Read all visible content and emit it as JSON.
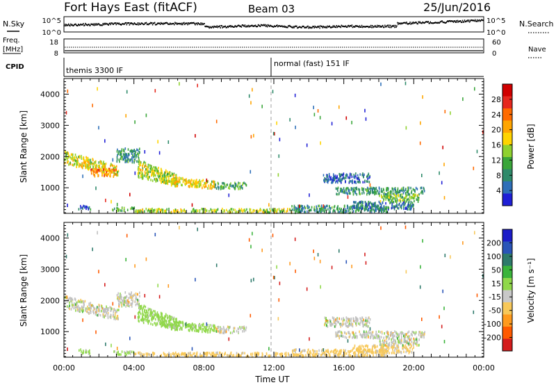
{
  "header": {
    "station": "Fort Hays East (fitACF)",
    "beam": "Beam 03",
    "date": "25/Jun/2016"
  },
  "noise_panel": {
    "left_label": "N.Sky",
    "right_label": "N.Search",
    "left_ticks": [
      "10^5",
      "10^0"
    ],
    "right_ticks": [
      "10^5",
      "10^0"
    ]
  },
  "freq_panel": {
    "left_label_1": "Freq.",
    "left_label_2": "[MHz]",
    "right_label": "Nave",
    "left_ticks": [
      "18",
      "8"
    ],
    "right_ticks": [
      "60",
      "0"
    ]
  },
  "cpid": {
    "label": "CPID",
    "segments": [
      {
        "start_hour": 0,
        "text": "themis 3300 IF"
      },
      {
        "start_hour": 12,
        "text": "normal (fast) 151 IF"
      }
    ]
  },
  "colors": {
    "power": [
      "#1f1fd6",
      "#2e6fb8",
      "#2e8a6a",
      "#3aa63a",
      "#8fd12f",
      "#ffd400",
      "#ffa500",
      "#ff6a00",
      "#e6281e",
      "#d00000"
    ],
    "velocity": [
      "#d41c1c",
      "#ff5a00",
      "#ff9a1e",
      "#f7c85a",
      "#c8c8c8",
      "#90d84a",
      "#3bb43b",
      "#2e7a6b",
      "#2a55b8",
      "#1c1cc8"
    ],
    "velocity_gray": "#c0c0c0"
  },
  "chart_data": [
    {
      "type": "heatmap",
      "name": "power",
      "ylabel": "Slant Range [km]",
      "yticks": [
        "1000",
        "2000",
        "3000",
        "4000"
      ],
      "ylim": [
        180,
        4500
      ],
      "xlim": [
        0,
        24
      ],
      "colorbar_label": "Power [dB]",
      "colorbar_ticks": [
        "4",
        "8",
        "12",
        "16",
        "20",
        "24",
        "28"
      ],
      "colorbar_range": [
        0,
        30
      ],
      "regions": [
        {
          "t0": 0.0,
          "t1": 3.1,
          "r0": 1750,
          "r1": 2150,
          "r_end0": 1350,
          "r_end1": 1700,
          "level": 16
        },
        {
          "t0": 1.5,
          "t1": 3.0,
          "r0": 1350,
          "r1": 1600,
          "level": 21
        },
        {
          "t0": 3.0,
          "t1": 4.3,
          "r0": 1800,
          "r1": 2250,
          "level": 8
        },
        {
          "t0": 4.2,
          "t1": 6.5,
          "r0": 1300,
          "r1": 1900,
          "r_end0": 1050,
          "r_end1": 1400,
          "level": 14
        },
        {
          "t0": 6.0,
          "t1": 8.6,
          "r0": 1050,
          "r1": 1350,
          "r_end0": 950,
          "r_end1": 1200,
          "level": 16
        },
        {
          "t0": 8.6,
          "t1": 10.4,
          "r0": 950,
          "r1": 1150,
          "level": 10
        },
        {
          "t0": 0.8,
          "t1": 1.5,
          "r0": 280,
          "r1": 420,
          "level": 6
        },
        {
          "t0": 2.7,
          "t1": 4.0,
          "r0": 250,
          "r1": 360,
          "level": 10
        },
        {
          "t0": 4.0,
          "t1": 13.0,
          "r0": 190,
          "r1": 320,
          "level": 14
        },
        {
          "t0": 13.0,
          "t1": 18.5,
          "r0": 190,
          "r1": 420,
          "level": 8
        },
        {
          "t0": 16.5,
          "t1": 20.0,
          "r0": 300,
          "r1": 550,
          "level": 6
        },
        {
          "t0": 14.8,
          "t1": 17.5,
          "r0": 1150,
          "r1": 1450,
          "level": 5
        },
        {
          "t0": 15.5,
          "t1": 20.6,
          "r0": 780,
          "r1": 1000,
          "level": 8
        },
        {
          "t0": 18.0,
          "t1": 20.3,
          "r0": 550,
          "r1": 780,
          "level": 12
        }
      ]
    },
    {
      "type": "heatmap",
      "name": "velocity",
      "xlabel": "Time UT",
      "ylabel": "Slant Range [km]",
      "yticks": [
        "1000",
        "2000",
        "3000",
        "4000"
      ],
      "xticks": [
        "00:00",
        "04:00",
        "08:00",
        "12:00",
        "16:00",
        "20:00",
        "00:00"
      ],
      "ylim": [
        180,
        4500
      ],
      "xlim": [
        0,
        24
      ],
      "colorbar_label": "Velocity [m s⁻¹]",
      "colorbar_ticks": [
        "200",
        "100",
        "50",
        "15",
        "-15",
        "-50",
        "-100",
        "-200"
      ],
      "regions": [
        {
          "t0": 0.0,
          "t1": 3.1,
          "r0": 1750,
          "r1": 2150,
          "r_end0": 1350,
          "r_end1": 1700,
          "vel": 0
        },
        {
          "t0": 3.0,
          "t1": 4.3,
          "r0": 1800,
          "r1": 2250,
          "vel": 0
        },
        {
          "t0": 4.2,
          "t1": 6.5,
          "r0": 1300,
          "r1": 1900,
          "r_end0": 1050,
          "r_end1": 1400,
          "vel": 30
        },
        {
          "t0": 6.0,
          "t1": 8.6,
          "r0": 1050,
          "r1": 1350,
          "r_end0": 950,
          "r_end1": 1200,
          "vel": 30
        },
        {
          "t0": 8.6,
          "t1": 10.4,
          "r0": 950,
          "r1": 1150,
          "vel": 0
        },
        {
          "t0": 0.8,
          "t1": 1.5,
          "r0": 280,
          "r1": 420,
          "vel": 30
        },
        {
          "t0": 2.7,
          "t1": 4.0,
          "r0": 250,
          "r1": 360,
          "vel": 30
        },
        {
          "t0": 4.0,
          "t1": 13.0,
          "r0": 190,
          "r1": 320,
          "vel": -30
        },
        {
          "t0": 13.0,
          "t1": 18.5,
          "r0": 190,
          "r1": 420,
          "vel": -30
        },
        {
          "t0": 16.5,
          "t1": 20.0,
          "r0": 300,
          "r1": 550,
          "vel": -30
        },
        {
          "t0": 14.8,
          "t1": 17.5,
          "r0": 1150,
          "r1": 1450,
          "vel": 0
        },
        {
          "t0": 15.5,
          "t1": 20.6,
          "r0": 780,
          "r1": 1000,
          "vel": 0
        },
        {
          "t0": 18.0,
          "t1": 20.3,
          "r0": 550,
          "r1": 780,
          "vel": 0
        }
      ]
    }
  ]
}
